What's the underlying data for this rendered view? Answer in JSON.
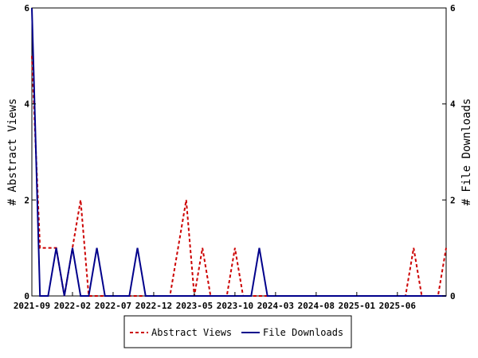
{
  "chart_data": {
    "type": "line",
    "x_tick_labels": [
      "2021-09",
      "2022-02",
      "2022-07",
      "2022-12",
      "2023-05",
      "2023-10",
      "2024-03",
      "2024-08",
      "2025-01",
      "2025-06"
    ],
    "y_left": {
      "label": "# Abstract Views",
      "ylim": [
        0,
        6
      ],
      "ticks": [
        "0",
        "2",
        "4",
        "6"
      ]
    },
    "y_right": {
      "label": "# File Downloads",
      "ylim": [
        0,
        6
      ],
      "ticks": [
        "0",
        "2",
        "4",
        "6"
      ]
    },
    "legend_position": "bottom-center",
    "grid": false,
    "series": [
      {
        "name": "Abstract Views",
        "axis": "left",
        "color": "#cc0000",
        "style": "dashed",
        "points": [
          [
            0,
            5
          ],
          [
            1,
            1
          ],
          [
            2,
            1
          ],
          [
            3,
            1
          ],
          [
            4,
            0
          ],
          [
            5,
            1
          ],
          [
            6,
            2
          ],
          [
            7,
            0
          ],
          [
            8,
            0
          ],
          [
            9,
            0
          ],
          [
            10,
            0
          ],
          [
            11,
            0
          ],
          [
            12,
            0
          ],
          [
            13,
            0
          ],
          [
            14,
            0
          ],
          [
            15,
            0
          ],
          [
            16,
            0
          ],
          [
            17,
            0
          ],
          [
            18,
            1
          ],
          [
            19,
            2
          ],
          [
            20,
            0
          ],
          [
            21,
            1
          ],
          [
            22,
            0
          ],
          [
            23,
            0
          ],
          [
            24,
            0
          ],
          [
            25,
            1
          ],
          [
            26,
            0
          ],
          [
            27,
            0
          ],
          [
            28,
            0
          ],
          [
            29,
            0
          ],
          [
            30,
            0
          ],
          [
            31,
            0
          ],
          [
            32,
            0
          ],
          [
            33,
            0
          ],
          [
            34,
            0
          ],
          [
            35,
            0
          ],
          [
            36,
            0
          ],
          [
            37,
            0
          ],
          [
            38,
            0
          ],
          [
            39,
            0
          ],
          [
            40,
            0
          ],
          [
            41,
            0
          ],
          [
            42,
            0
          ],
          [
            43,
            0
          ],
          [
            44,
            0
          ],
          [
            45,
            0
          ],
          [
            46,
            0
          ],
          [
            47,
            1
          ],
          [
            48,
            0
          ],
          [
            49,
            0
          ],
          [
            50,
            0
          ],
          [
            51,
            1
          ]
        ]
      },
      {
        "name": "File Downloads",
        "axis": "right",
        "color": "#00008b",
        "style": "solid",
        "points": [
          [
            0,
            6
          ],
          [
            1,
            0
          ],
          [
            2,
            0
          ],
          [
            3,
            1
          ],
          [
            4,
            0
          ],
          [
            5,
            1
          ],
          [
            6,
            0
          ],
          [
            7,
            0
          ],
          [
            8,
            1
          ],
          [
            9,
            0
          ],
          [
            10,
            0
          ],
          [
            11,
            0
          ],
          [
            12,
            0
          ],
          [
            13,
            1
          ],
          [
            14,
            0
          ],
          [
            15,
            0
          ],
          [
            16,
            0
          ],
          [
            17,
            0
          ],
          [
            18,
            0
          ],
          [
            19,
            0
          ],
          [
            20,
            0
          ],
          [
            21,
            0
          ],
          [
            22,
            0
          ],
          [
            23,
            0
          ],
          [
            24,
            0
          ],
          [
            25,
            0
          ],
          [
            26,
            0
          ],
          [
            27,
            0
          ],
          [
            28,
            1
          ],
          [
            29,
            0
          ],
          [
            30,
            0
          ],
          [
            31,
            0
          ],
          [
            32,
            0
          ],
          [
            33,
            0
          ],
          [
            34,
            0
          ],
          [
            35,
            0
          ],
          [
            36,
            0
          ],
          [
            37,
            0
          ],
          [
            38,
            0
          ],
          [
            39,
            0
          ],
          [
            40,
            0
          ],
          [
            41,
            0
          ],
          [
            42,
            0
          ],
          [
            43,
            0
          ],
          [
            44,
            0
          ],
          [
            45,
            0
          ],
          [
            46,
            0
          ],
          [
            47,
            0
          ],
          [
            48,
            0
          ],
          [
            49,
            0
          ],
          [
            50,
            0
          ],
          [
            51,
            0
          ]
        ]
      }
    ]
  },
  "colors": {
    "abstract_views": "#cc0000",
    "file_downloads": "#00008b",
    "axis": "#000000"
  }
}
